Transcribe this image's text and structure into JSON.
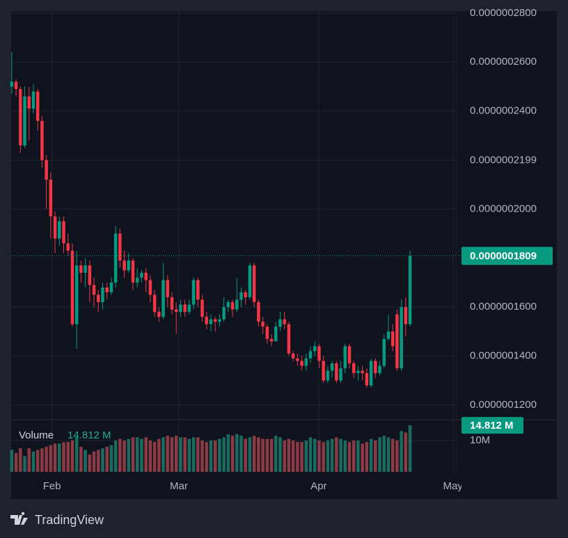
{
  "chart_data": {
    "type": "candlestick",
    "open": [
      2.5e-07,
      2.52e-07,
      2.49e-07,
      2.26e-07,
      2.46e-07,
      2.41e-07,
      2.48e-07,
      2.36e-07,
      2.2e-07,
      2.12e-07,
      1.97e-07,
      1.88e-07,
      1.95e-07,
      1.86e-07,
      1.83e-07,
      1.53e-07,
      1.77e-07,
      1.74e-07,
      1.77e-07,
      1.69e-07,
      1.65e-07,
      1.62e-07,
      1.68e-07,
      1.66e-07,
      1.7e-07,
      1.9e-07,
      1.79e-07,
      1.75e-07,
      1.79e-07,
      1.7e-07,
      1.72e-07,
      1.74e-07,
      1.71e-07,
      1.65e-07,
      1.58e-07,
      1.56e-07,
      1.71e-07,
      1.64e-07,
      1.59e-07,
      1.58e-07,
      1.61e-07,
      1.58e-07,
      1.61e-07,
      1.71e-07,
      1.63e-07,
      1.56e-07,
      1.53e-07,
      1.55e-07,
      1.54e-07,
      1.55e-07,
      1.6e-07,
      1.62e-07,
      1.59e-07,
      1.63e-07,
      1.66e-07,
      1.64e-07,
      1.77e-07,
      1.62e-07,
      1.54e-07,
      1.52e-07,
      1.47e-07,
      1.46e-07,
      1.52e-07,
      1.55e-07,
      1.53e-07,
      1.41e-07,
      1.39e-07,
      1.38e-07,
      1.36e-07,
      1.39e-07,
      1.42e-07,
      1.44e-07,
      1.38e-07,
      1.3e-07,
      1.34e-07,
      1.37e-07,
      1.3e-07,
      1.35e-07,
      1.44e-07,
      1.37e-07,
      1.33e-07,
      1.34e-07,
      1.33e-07,
      1.28e-07,
      1.38e-07,
      1.33e-07,
      1.36e-07,
      1.47e-07,
      1.5e-07,
      1.57e-07,
      1.35e-07,
      1.6e-07,
      1.53e-07
    ],
    "high": [
      2.64e-07,
      2.53e-07,
      2.5e-07,
      2.5e-07,
      2.5e-07,
      2.51e-07,
      2.49e-07,
      2.38e-07,
      2.22e-07,
      2.15e-07,
      1.99e-07,
      1.97e-07,
      1.97e-07,
      1.9e-07,
      1.86e-07,
      1.83e-07,
      1.79e-07,
      1.8e-07,
      1.79e-07,
      1.72e-07,
      1.67e-07,
      1.7e-07,
      1.7e-07,
      1.72e-07,
      1.93e-07,
      1.92e-07,
      1.83e-07,
      1.82e-07,
      1.8e-07,
      1.76e-07,
      1.75e-07,
      1.76e-07,
      1.73e-07,
      1.67e-07,
      1.6e-07,
      1.78e-07,
      1.73e-07,
      1.66e-07,
      1.62e-07,
      1.63e-07,
      1.63e-07,
      1.63e-07,
      1.72e-07,
      1.72e-07,
      1.65e-07,
      1.58e-07,
      1.57e-07,
      1.56e-07,
      1.57e-07,
      1.64e-07,
      1.63e-07,
      1.63e-07,
      1.72e-07,
      1.68e-07,
      1.67e-07,
      1.78e-07,
      1.78e-07,
      1.63e-07,
      1.56e-07,
      1.53e-07,
      1.49e-07,
      1.54e-07,
      1.58e-07,
      1.58e-07,
      1.54e-07,
      1.42e-07,
      1.41e-07,
      1.4e-07,
      1.41e-07,
      1.44e-07,
      1.46e-07,
      1.45e-07,
      1.4e-07,
      1.36e-07,
      1.38e-07,
      1.38e-07,
      1.38e-07,
      1.45e-07,
      1.45e-07,
      1.38e-07,
      1.36e-07,
      1.36e-07,
      1.35e-07,
      1.39e-07,
      1.39e-07,
      1.38e-07,
      1.49e-07,
      1.57e-07,
      1.53e-07,
      1.59e-07,
      1.63e-07,
      1.64e-07,
      1.83e-07
    ],
    "low": [
      2.47e-07,
      2.46e-07,
      2.23e-07,
      2.25e-07,
      2.28e-07,
      2.39e-07,
      2.32e-07,
      2.17e-07,
      2e-07,
      1.88e-07,
      1.82e-07,
      1.85e-07,
      1.82e-07,
      1.81e-07,
      1.52e-07,
      1.43e-07,
      1.7e-07,
      1.68e-07,
      1.62e-07,
      1.6e-07,
      1.58e-07,
      1.59e-07,
      1.63e-07,
      1.65e-07,
      1.68e-07,
      1.76e-07,
      1.72e-07,
      1.74e-07,
      1.67e-07,
      1.68e-07,
      1.7e-07,
      1.66e-07,
      1.62e-07,
      1.56e-07,
      1.54e-07,
      1.55e-07,
      1.6e-07,
      1.57e-07,
      1.49e-07,
      1.56e-07,
      1.56e-07,
      1.57e-07,
      1.59e-07,
      1.6e-07,
      1.54e-07,
      1.51e-07,
      1.5e-07,
      1.5e-07,
      1.52e-07,
      1.54e-07,
      1.58e-07,
      1.56e-07,
      1.58e-07,
      1.6e-07,
      1.61e-07,
      1.63e-07,
      1.6e-07,
      1.52e-07,
      1.49e-07,
      1.45e-07,
      1.44e-07,
      1.46e-07,
      1.5e-07,
      1.51e-07,
      1.4e-07,
      1.38e-07,
      1.36e-07,
      1.34e-07,
      1.34e-07,
      1.37e-07,
      1.4e-07,
      1.35e-07,
      1.29e-07,
      1.29e-07,
      1.31e-07,
      1.29e-07,
      1.29e-07,
      1.33e-07,
      1.35e-07,
      1.31e-07,
      1.3e-07,
      1.3e-07,
      1.27e-07,
      1.27e-07,
      1.31e-07,
      1.32e-07,
      1.35e-07,
      1.46e-07,
      1.42e-07,
      1.34e-07,
      1.34e-07,
      1.48e-07,
      1.52e-07
    ],
    "close": [
      2.52e-07,
      2.49e-07,
      2.26e-07,
      2.46e-07,
      2.41e-07,
      2.48e-07,
      2.36e-07,
      2.2e-07,
      2.12e-07,
      1.97e-07,
      1.88e-07,
      1.95e-07,
      1.86e-07,
      1.83e-07,
      1.53e-07,
      1.77e-07,
      1.74e-07,
      1.77e-07,
      1.69e-07,
      1.65e-07,
      1.62e-07,
      1.68e-07,
      1.66e-07,
      1.7e-07,
      1.9e-07,
      1.79e-07,
      1.75e-07,
      1.79e-07,
      1.7e-07,
      1.72e-07,
      1.74e-07,
      1.71e-07,
      1.65e-07,
      1.58e-07,
      1.56e-07,
      1.71e-07,
      1.64e-07,
      1.59e-07,
      1.58e-07,
      1.61e-07,
      1.58e-07,
      1.61e-07,
      1.71e-07,
      1.63e-07,
      1.56e-07,
      1.53e-07,
      1.55e-07,
      1.54e-07,
      1.55e-07,
      1.6e-07,
      1.62e-07,
      1.59e-07,
      1.63e-07,
      1.66e-07,
      1.64e-07,
      1.77e-07,
      1.62e-07,
      1.54e-07,
      1.52e-07,
      1.47e-07,
      1.46e-07,
      1.52e-07,
      1.55e-07,
      1.53e-07,
      1.41e-07,
      1.39e-07,
      1.38e-07,
      1.36e-07,
      1.39e-07,
      1.42e-07,
      1.44e-07,
      1.38e-07,
      1.3e-07,
      1.34e-07,
      1.37e-07,
      1.3e-07,
      1.35e-07,
      1.44e-07,
      1.37e-07,
      1.33e-07,
      1.34e-07,
      1.33e-07,
      1.28e-07,
      1.38e-07,
      1.33e-07,
      1.36e-07,
      1.47e-07,
      1.5e-07,
      1.44e-07,
      1.35e-07,
      1.6e-07,
      1.53e-07,
      1.809e-07
    ],
    "colors": {
      "up": "#089981",
      "down": "#f23645",
      "volume_up": "#1b6b61",
      "volume_down": "#8c3a44"
    },
    "xlim": [
      -0.3,
      102.6
    ],
    "xticks": [
      {
        "value": 9.3,
        "label": "Feb"
      },
      {
        "value": 38.6,
        "label": "Mar"
      },
      {
        "value": 70.9,
        "label": "Apr"
      },
      {
        "value": 101.9,
        "label": "May"
      }
    ],
    "ylim": [
      1.14e-07,
      2.811e-07
    ],
    "yticks": [
      {
        "value": 2.8e-07,
        "label": "0.0000002800"
      },
      {
        "value": 2.6e-07,
        "label": "0.0000002600"
      },
      {
        "value": 2.4e-07,
        "label": "0.0000002400"
      },
      {
        "value": 2.199e-07,
        "label": "0.0000002199"
      },
      {
        "value": 2e-07,
        "label": "0.0000002000"
      },
      {
        "value": 1.6e-07,
        "label": "0.0000001600"
      },
      {
        "value": 1.4e-07,
        "label": "0.0000001400"
      },
      {
        "value": 1.2e-07,
        "label": "0.0000001200"
      }
    ],
    "last_price_label": "0.0000001809",
    "grid": true,
    "volume": {
      "name": "Volume",
      "values": [
        7000000.0,
        6000000.0,
        7500000.0,
        5000000.0,
        7500000.0,
        6500000.0,
        7000000.0,
        7500000.0,
        8000000.0,
        8500000.0,
        9000000.0,
        9000000.0,
        9500000.0,
        9500000.0,
        10000000.0,
        11000000.0,
        8000000.0,
        7000000.0,
        5500000.0,
        6500000.0,
        7000000.0,
        7500000.0,
        8000000.0,
        8500000.0,
        10000000.0,
        10500000.0,
        10000000.0,
        10500000.0,
        11000000.0,
        11000000.0,
        10500000.0,
        11000000.0,
        10000000.0,
        9500000.0,
        10500000.0,
        11000000.0,
        11500000.0,
        11000000.0,
        11500000.0,
        11000000.0,
        11000000.0,
        10500000.0,
        11000000.0,
        11000000.0,
        10000000.0,
        9500000.0,
        10000000.0,
        10000000.0,
        10500000.0,
        11000000.0,
        12000000.0,
        11500000.0,
        12000000.0,
        11500000.0,
        10500000.0,
        11000000.0,
        11500000.0,
        11000000.0,
        10500000.0,
        10500000.0,
        10500000.0,
        11500000.0,
        11000000.0,
        10000000.0,
        10500000.0,
        10000000.0,
        9500000.0,
        9500000.0,
        10000000.0,
        11000000.0,
        10500000.0,
        10000000.0,
        9500000.0,
        10000000.0,
        10500000.0,
        11000000.0,
        10500000.0,
        10000000.0,
        9500000.0,
        10000000.0,
        10000000.0,
        9000000.0,
        9500000.0,
        10500000.0,
        10000000.0,
        11000000.0,
        11500000.0,
        11000000.0,
        10500000.0,
        10000000.0,
        13000000.0,
        12500000.0,
        14812000
      ],
      "value_label": "14.812 M",
      "ylim": [
        0,
        16600000.0
      ],
      "yticks": [
        {
          "value": 10000000,
          "label": "10M"
        }
      ]
    }
  },
  "branding": {
    "logo_text": "TradingView"
  }
}
